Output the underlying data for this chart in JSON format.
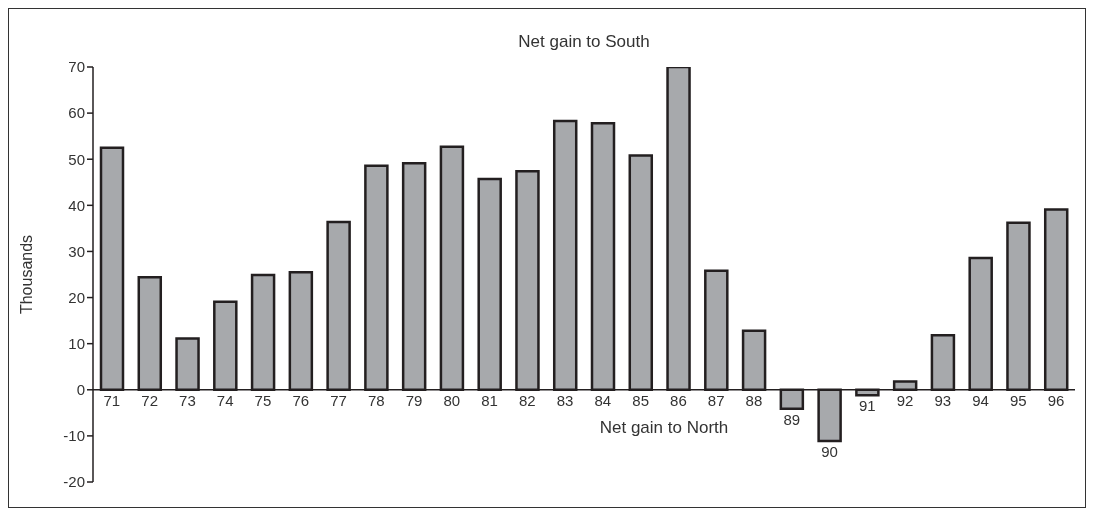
{
  "chart_data": {
    "type": "bar",
    "ylabel": "Thousands",
    "annotations": [
      "Net gain to South",
      "Net gain to North"
    ],
    "categories": [
      "71",
      "72",
      "73",
      "74",
      "75",
      "76",
      "77",
      "78",
      "79",
      "80",
      "81",
      "82",
      "83",
      "84",
      "85",
      "86",
      "87",
      "88",
      "89",
      "90",
      "91",
      "92",
      "93",
      "94",
      "95",
      "96"
    ],
    "values": [
      52.5,
      24.4,
      11.1,
      19.1,
      24.9,
      25.5,
      36.4,
      48.6,
      49.1,
      52.7,
      45.7,
      47.4,
      58.3,
      57.8,
      50.8,
      70,
      25.8,
      12.8,
      -4.1,
      -11.1,
      -1.2,
      1.8,
      11.8,
      28.6,
      36.2,
      39.1
    ],
    "color": "#a7a9ac",
    "ylim": [
      -20,
      70
    ],
    "yticks": [
      -20,
      -10,
      0,
      10,
      20,
      30,
      40,
      50,
      60,
      70
    ],
    "grid": false,
    "legend": false
  }
}
